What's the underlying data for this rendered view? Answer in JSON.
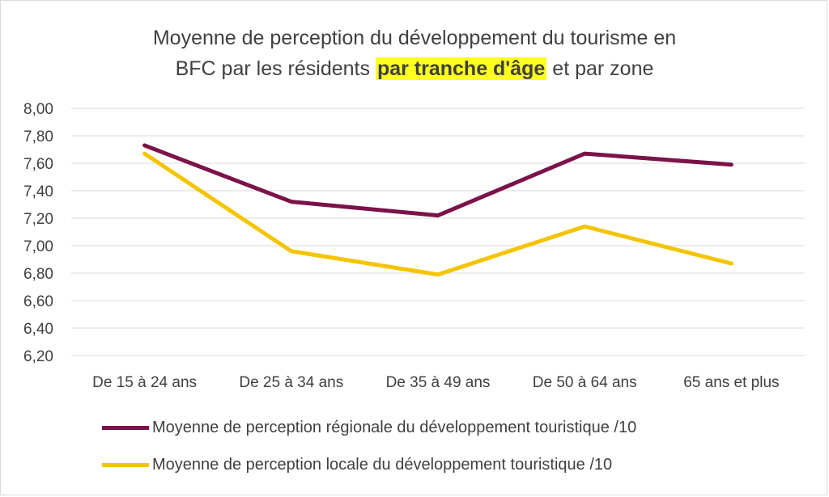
{
  "title": {
    "line1": "Moyenne de perception du développement du tourisme en",
    "line2_before": "BFC par les résidents ",
    "line2_highlight": "par tranche d'âge",
    "line2_after": " et par zone",
    "highlight_color": "#ffff1f"
  },
  "chart_data": {
    "type": "line",
    "title": "Moyenne de perception du développement du tourisme en BFC par les résidents par tranche d'âge et par zone",
    "categories": [
      "De 15 à 24 ans",
      "De 25 à 34 ans",
      "De 35 à 49 ans",
      "De 50 à 64 ans",
      "65 ans et plus"
    ],
    "series": [
      {
        "name": "Moyenne de perception régionale du développement touristique /10",
        "color": "#7b1248",
        "values": [
          7.73,
          7.32,
          7.22,
          7.67,
          7.59
        ]
      },
      {
        "name": "Moyenne de perception locale du développement touristique /10",
        "color": "#f5c400",
        "values": [
          7.67,
          6.96,
          6.79,
          7.14,
          6.87
        ]
      }
    ],
    "ylim": [
      6.2,
      8.0
    ],
    "yticks": [
      "8,00",
      "7,80",
      "7,60",
      "7,40",
      "7,20",
      "7,00",
      "6,80",
      "6,60",
      "6,40",
      "6,20"
    ],
    "xlabel": "",
    "ylabel": "",
    "grid": true,
    "legend_position": "bottom"
  }
}
